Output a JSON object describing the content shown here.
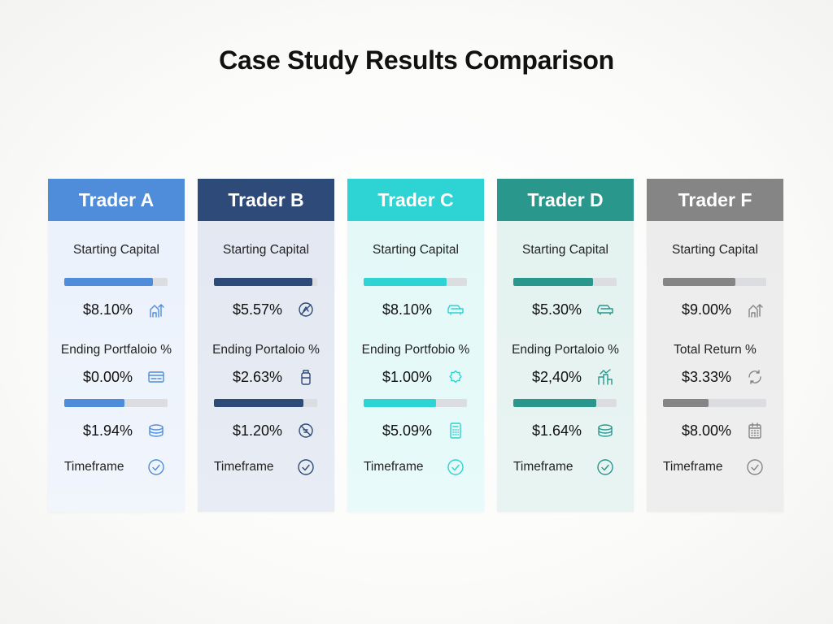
{
  "title": "Case Study Results Comparison",
  "cards": [
    {
      "name": "Trader A",
      "header_color": "#4f8ddb",
      "bg_top": "#eaf1fb",
      "bg_bottom": "#f1f5fc",
      "accent": "#4f8ddb",
      "label1": "Starting Capital",
      "bar1": 0.86,
      "value1": "$8.10%",
      "icon1": "house-arrows-icon",
      "label2": "Ending Portfaloio %",
      "value2": "$0.00%",
      "icon2": "card-icon",
      "bar2": 0.58,
      "value3": "$1.94%",
      "icon3": "coins-icon",
      "timeframe": "Timeframe"
    },
    {
      "name": "Trader B",
      "header_color": "#2e4a78",
      "bg_top": "#e2e7f1",
      "bg_bottom": "#e8ecf4",
      "accent": "#2e4a78",
      "label1": "Starting Capital",
      "bar1": 0.95,
      "value1": "$5.57%",
      "icon1": "no-sign-icon",
      "label2": "Ending Portaloio %",
      "value2": "$2.63%",
      "icon2": "jar-icon",
      "bar2": 0.87,
      "value3": "$1.20%",
      "icon3": "blocked-icon",
      "timeframe": "Timeframe"
    },
    {
      "name": "Trader C",
      "header_color": "#2ed3d3",
      "bg_top": "#e3f8f8",
      "bg_bottom": "#e8fafa",
      "accent": "#2ed3d3",
      "label1": "Starting Capital",
      "bar1": 0.8,
      "value1": "$8.10%",
      "icon1": "car-icon",
      "label2": "Ending Portfobio %",
      "value2": "$1.00%",
      "icon2": "badge-icon",
      "bar2": 0.7,
      "value3": "$5.09%",
      "icon3": "calculator-icon",
      "timeframe": "Timeframe"
    },
    {
      "name": "Trader D",
      "header_color": "#2a978d",
      "bg_top": "#e3f2ef",
      "bg_bottom": "#e8f4f2",
      "accent": "#2a978d",
      "label1": "Starting Capital",
      "bar1": 0.77,
      "value1": "$5.30%",
      "icon1": "car-icon",
      "label2": "Ending Portaloio %",
      "value2": "$2,40%",
      "icon2": "chart-box-icon",
      "bar2": 0.8,
      "value3": "$1.64%",
      "icon3": "coins-icon",
      "timeframe": "Timeframe"
    },
    {
      "name": "Trader F",
      "header_color": "#858585",
      "bg_top": "#ececec",
      "bg_bottom": "#eeeeee",
      "accent": "#858585",
      "label1": "Starting Capital",
      "bar1": 0.7,
      "value1": "$9.00%",
      "icon1": "house-arrows-icon",
      "label2": "Total Return %",
      "value2": "$3.33%",
      "icon2": "refresh-icon",
      "bar2": 0.44,
      "value3": "$8.00%",
      "icon3": "calendar-icon",
      "timeframe": "Timeframe"
    }
  ]
}
